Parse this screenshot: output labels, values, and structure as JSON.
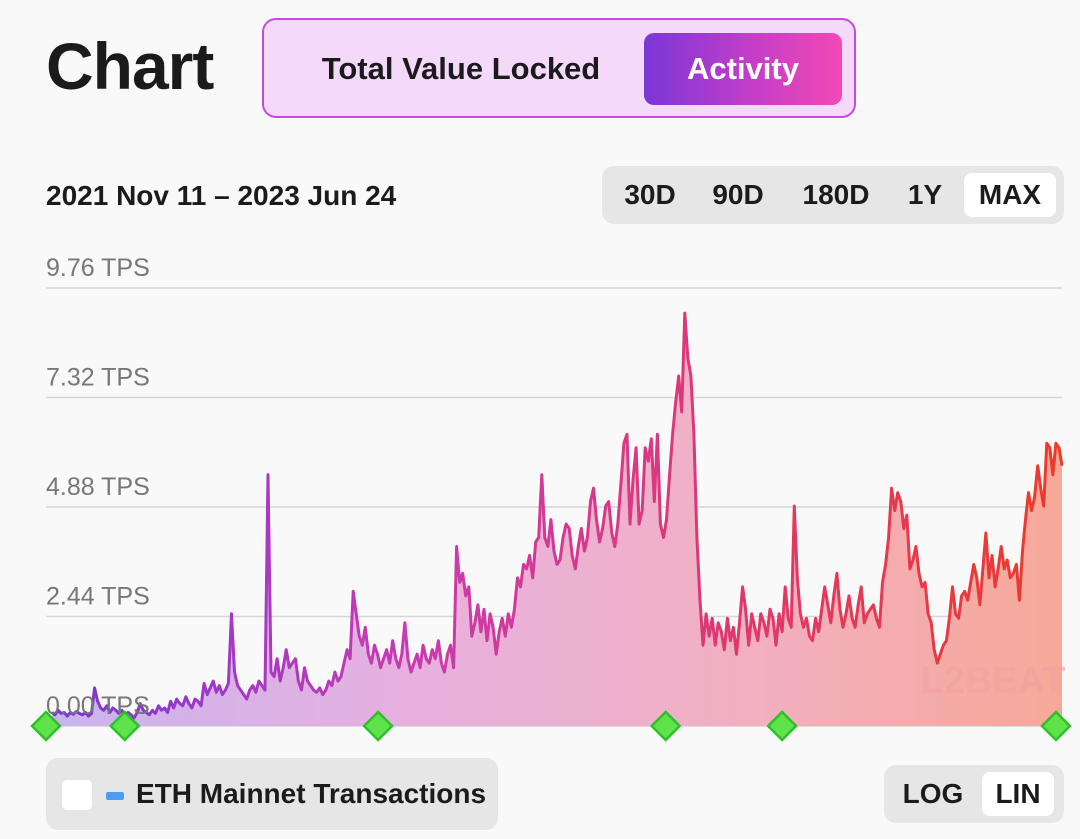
{
  "page": {
    "title": "Chart"
  },
  "toggle": {
    "options": [
      "Total Value Locked",
      "Activity"
    ],
    "selected": "Activity"
  },
  "date_range": "2021 Nov 11 – 2023 Jun 24",
  "periods": {
    "options": [
      "30D",
      "90D",
      "180D",
      "1Y",
      "MAX"
    ],
    "selected": "MAX"
  },
  "legend": {
    "label": "ETH Mainnet Transactions",
    "checked": false,
    "swatch_color": "#4c9cf0"
  },
  "scale": {
    "options": [
      "LOG",
      "LIN"
    ],
    "selected": "LIN"
  },
  "watermark": "L2BEAT",
  "colors": {
    "gradient_start": "#7a36d8",
    "gradient_mid": "#e0386a",
    "gradient_end": "#ec3a2a",
    "marker": "#5ee34a"
  },
  "chart_data": {
    "type": "area",
    "y_unit": "TPS",
    "ylim": [
      0,
      9.76
    ],
    "y_ticks": [
      "0.00 TPS",
      "2.44 TPS",
      "4.88 TPS",
      "7.32 TPS",
      "9.76 TPS"
    ],
    "x_range": [
      "2021-11-11",
      "2023-06-24"
    ],
    "series": [
      {
        "values": [
          0.3,
          0.25,
          0.35,
          0.28,
          0.3,
          0.22,
          0.3,
          0.26,
          0.32,
          0.28,
          0.25,
          0.3,
          0.22,
          0.28,
          0.85,
          0.55,
          0.4,
          0.35,
          0.45,
          0.3,
          0.4,
          0.35,
          0.28,
          0.35,
          0.2,
          0.3,
          0.25,
          0.18,
          0.3,
          0.5,
          0.35,
          0.3,
          0.25,
          0.35,
          0.28,
          0.45,
          0.35,
          0.4,
          0.3,
          0.55,
          0.4,
          0.6,
          0.5,
          0.45,
          0.65,
          0.5,
          0.4,
          0.6,
          0.55,
          0.45,
          0.95,
          0.7,
          0.85,
          1.0,
          0.75,
          0.9,
          0.7,
          0.8,
          0.95,
          2.5,
          1.2,
          0.9,
          0.8,
          0.7,
          0.6,
          0.8,
          0.9,
          0.75,
          1.0,
          0.9,
          0.8,
          5.6,
          1.2,
          1.1,
          1.5,
          1.0,
          1.3,
          1.7,
          1.3,
          1.4,
          1.5,
          1.0,
          0.8,
          1.3,
          1.0,
          0.9,
          0.8,
          0.75,
          0.85,
          0.7,
          0.8,
          1.0,
          0.9,
          1.2,
          1.0,
          1.1,
          1.4,
          1.7,
          1.5,
          3.0,
          2.5,
          2.0,
          1.8,
          2.2,
          1.6,
          1.4,
          1.8,
          1.6,
          1.3,
          1.5,
          1.7,
          1.4,
          1.9,
          1.5,
          1.3,
          1.6,
          2.3,
          1.5,
          1.2,
          1.4,
          1.6,
          1.3,
          1.8,
          1.5,
          1.4,
          1.7,
          1.5,
          1.9,
          1.4,
          1.2,
          1.6,
          1.8,
          1.3,
          4.0,
          3.2,
          3.4,
          2.9,
          3.1,
          2.0,
          2.3,
          2.7,
          2.1,
          2.6,
          1.9,
          2.5,
          2.2,
          1.6,
          2.1,
          2.4,
          2.0,
          2.5,
          2.2,
          2.6,
          3.3,
          3.1,
          3.6,
          3.5,
          3.8,
          3.3,
          4.1,
          4.2,
          5.6,
          4.2,
          4.0,
          4.6,
          3.9,
          3.6,
          3.7,
          4.2,
          4.5,
          4.4,
          3.8,
          3.5,
          4.0,
          4.4,
          3.9,
          4.2,
          5.0,
          5.3,
          4.6,
          4.1,
          4.4,
          4.9,
          5.0,
          4.3,
          4.0,
          4.5,
          5.4,
          6.3,
          6.5,
          4.5,
          5.5,
          6.2,
          4.5,
          4.8,
          6.2,
          5.9,
          6.4,
          5.0,
          6.5,
          4.5,
          4.2,
          4.6,
          5.6,
          6.5,
          7.2,
          7.8,
          7.0,
          9.2,
          8.2,
          7.8,
          6.5,
          4.2,
          2.8,
          1.8,
          2.5,
          2.0,
          2.4,
          1.8,
          2.3,
          2.1,
          1.7,
          2.4,
          1.9,
          2.2,
          1.6,
          2.3,
          3.1,
          2.6,
          1.8,
          2.5,
          2.2,
          1.9,
          2.5,
          2.3,
          2.0,
          2.6,
          2.4,
          1.8,
          2.5,
          2.1,
          3.1,
          2.4,
          2.2,
          4.9,
          3.3,
          2.5,
          2.2,
          2.4,
          2.0,
          1.9,
          2.4,
          2.1,
          2.6,
          3.1,
          2.7,
          2.3,
          2.9,
          3.4,
          2.6,
          2.2,
          2.5,
          2.9,
          2.4,
          2.2,
          2.7,
          3.1,
          2.3,
          2.5,
          2.6,
          2.7,
          2.4,
          2.2,
          3.2,
          3.6,
          4.2,
          5.3,
          4.8,
          5.2,
          5.0,
          4.4,
          4.7,
          3.5,
          3.7,
          4.0,
          3.4,
          3.1,
          3.2,
          2.5,
          2.3,
          1.7,
          1.4,
          1.6,
          1.8,
          1.9,
          2.4,
          3.1,
          2.5,
          2.4,
          2.9,
          3.0,
          2.8,
          3.2,
          3.6,
          3.3,
          2.7,
          3.5,
          4.3,
          3.3,
          3.8,
          3.1,
          3.5,
          4.0,
          3.5,
          3.7,
          3.3,
          3.4,
          3.6,
          2.8,
          3.9,
          4.6,
          5.2,
          4.8,
          5.1,
          5.8,
          5.3,
          4.9,
          6.3,
          6.2,
          5.6,
          6.3,
          6.2,
          5.8
        ]
      }
    ],
    "markers": [
      "2021-11-11",
      "2021-12-27",
      "2022-05-24",
      "2022-11-08",
      "2023-01-15",
      "2023-06-24"
    ]
  }
}
